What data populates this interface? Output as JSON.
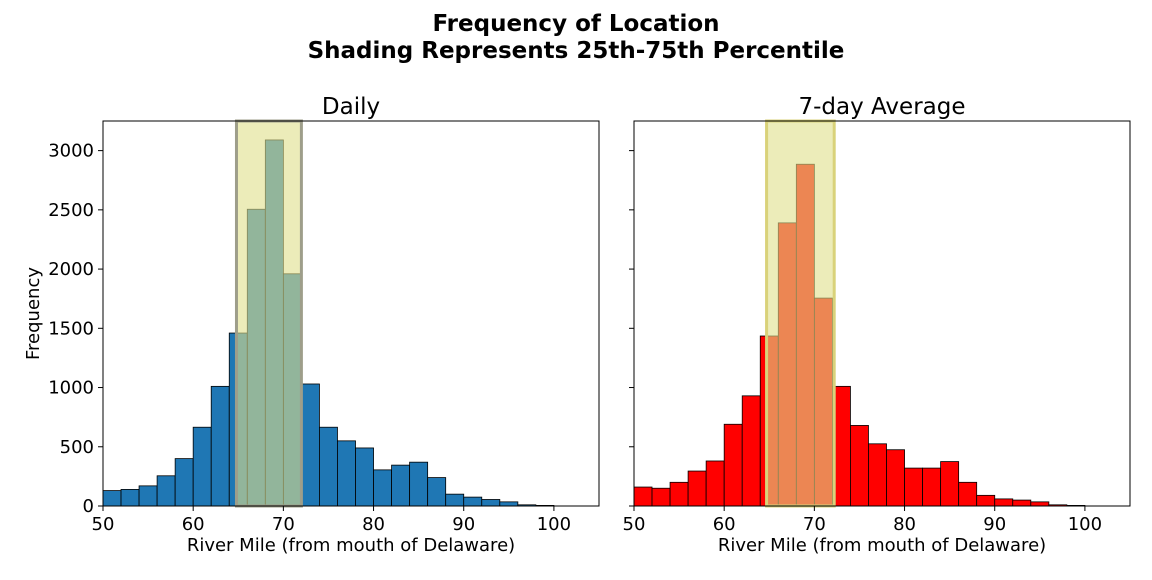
{
  "figure": {
    "title_line1": "Frequency of Location",
    "title_line2": "Shading Represents 25th-75th Percentile"
  },
  "chart_data": [
    {
      "type": "bar",
      "title": "Daily",
      "xlabel": "River Mile (from mouth of Delaware)",
      "ylabel": "Frequency",
      "xlim": [
        50,
        105
      ],
      "ylim": [
        0,
        3250
      ],
      "xticks": [
        50,
        60,
        70,
        80,
        90,
        100
      ],
      "yticks": [
        0,
        500,
        1000,
        1500,
        2000,
        2500,
        3000
      ],
      "bin_start": 50,
      "bin_width": 2,
      "values": [
        130,
        140,
        170,
        255,
        400,
        665,
        1010,
        1460,
        2505,
        3090,
        1960,
        1030,
        665,
        550,
        490,
        305,
        345,
        370,
        240,
        100,
        75,
        55,
        35,
        10,
        5
      ],
      "bar_color": "#1f77b4",
      "shade": {
        "from": 64.8,
        "to": 72.0,
        "color": "#e0e08a",
        "edge_color": "#9e9e8a"
      },
      "grid": false
    },
    {
      "type": "bar",
      "title": "7-day Average",
      "xlabel": "River Mile (from mouth of Delaware)",
      "ylabel": "",
      "xlim": [
        50,
        105
      ],
      "ylim": [
        0,
        3250
      ],
      "xticks": [
        50,
        60,
        70,
        80,
        90,
        100
      ],
      "yticks": [
        0,
        500,
        1000,
        1500,
        2000,
        2500,
        3000
      ],
      "show_ytick_labels": false,
      "bin_start": 50,
      "bin_width": 2,
      "values": [
        160,
        150,
        200,
        295,
        380,
        690,
        930,
        1435,
        2390,
        2885,
        1755,
        1010,
        680,
        525,
        475,
        320,
        320,
        375,
        200,
        90,
        60,
        50,
        35,
        10,
        5
      ],
      "bar_color": "#ff0000",
      "shade": {
        "from": 64.7,
        "to": 72.2,
        "color": "#e0e08a",
        "edge_color": "#d9d27a"
      },
      "grid": false
    }
  ]
}
